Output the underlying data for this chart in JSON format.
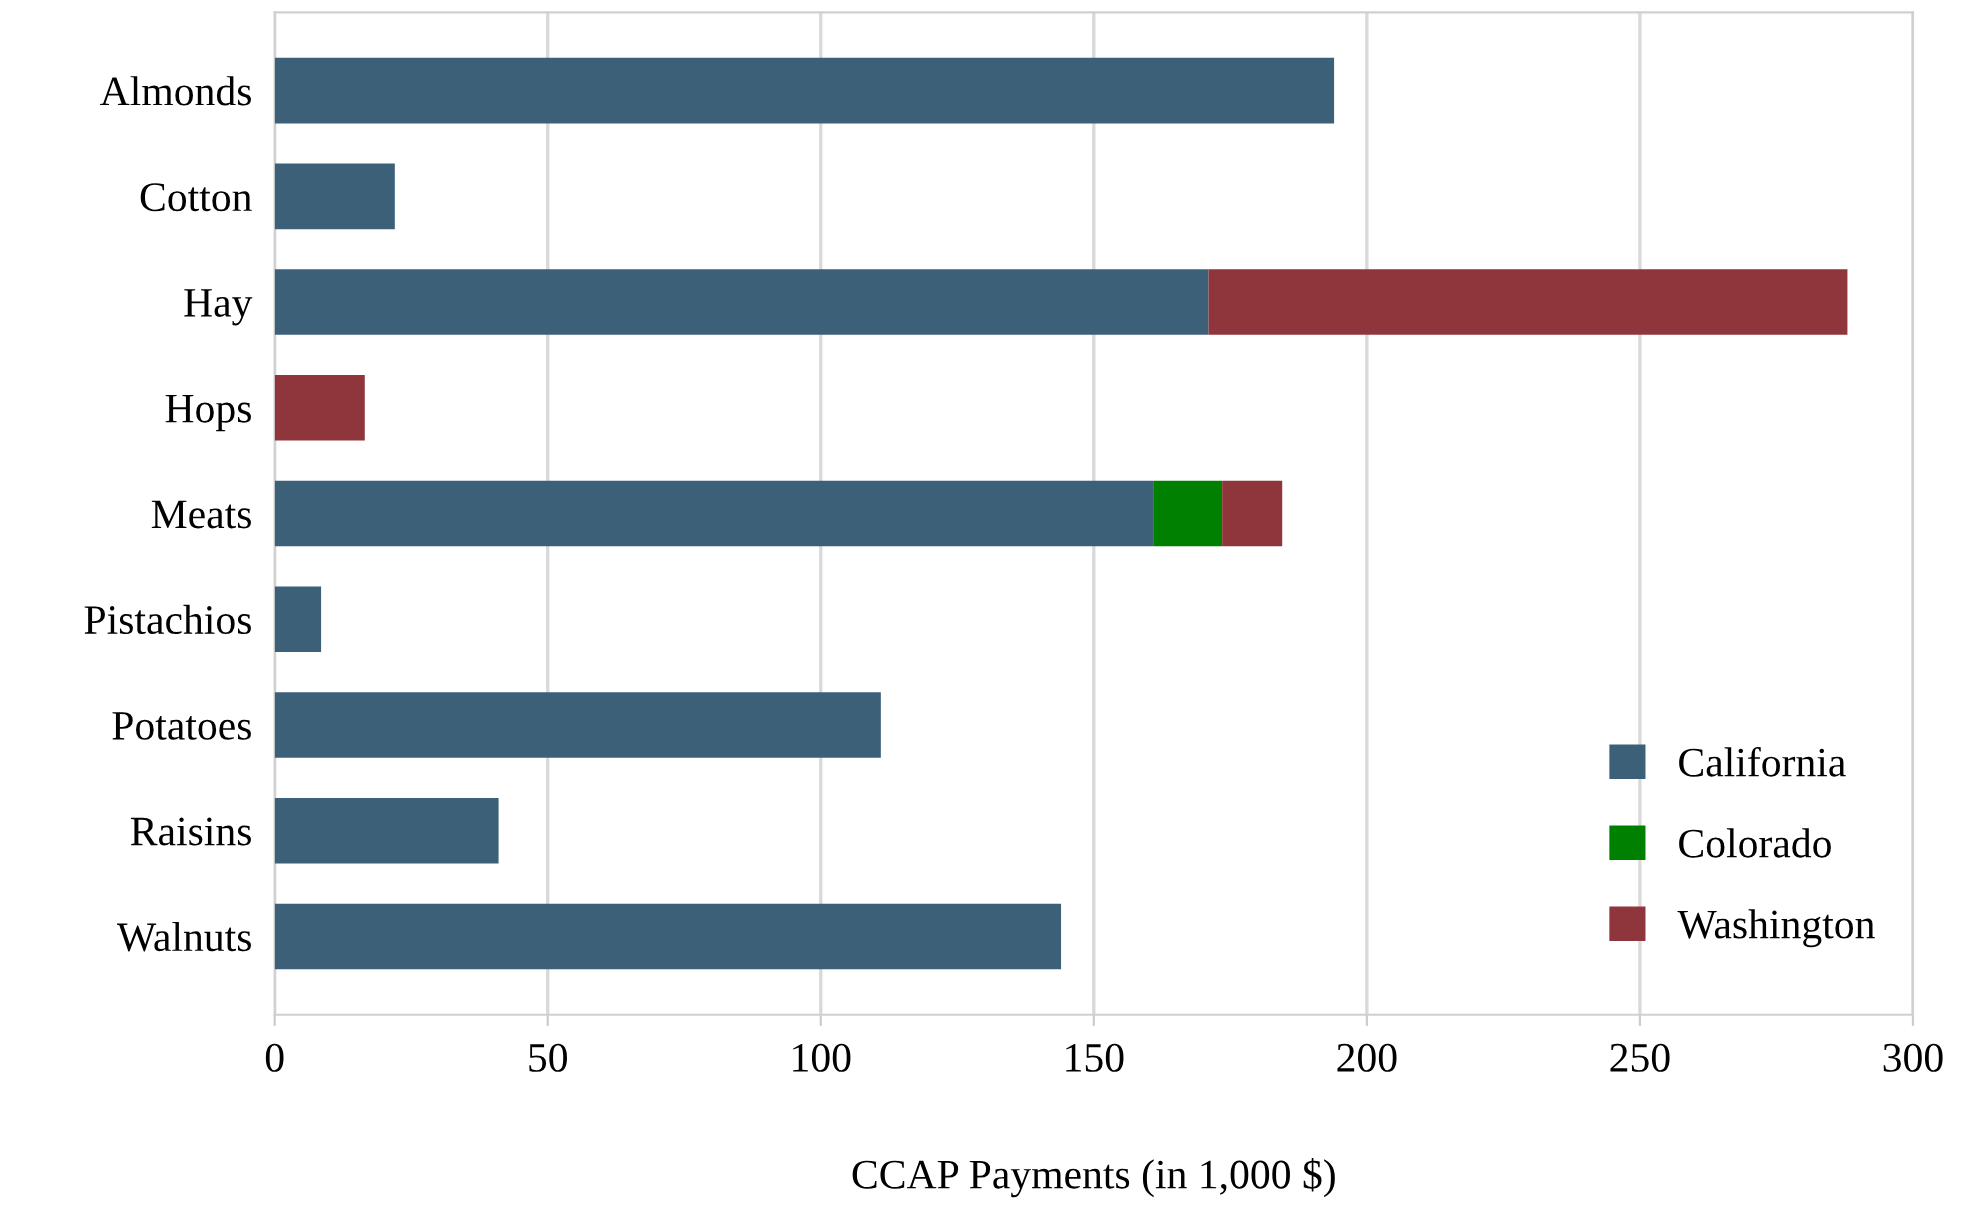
{
  "chart_data": {
    "type": "bar",
    "orientation": "horizontal",
    "stacked": true,
    "xlabel": "CCAP Payments (in 1,000 $)",
    "categories": [
      "Almonds",
      "Cotton",
      "Hay",
      "Hops",
      "Meats",
      "Pistachios",
      "Potatoes",
      "Raisins",
      "Walnuts"
    ],
    "series": [
      {
        "name": "California",
        "color": "#3d6079",
        "values": [
          194,
          22,
          171,
          0,
          161,
          8.5,
          111,
          41,
          144
        ]
      },
      {
        "name": "Colorado",
        "color": "#008000",
        "values": [
          0,
          0,
          0,
          0,
          12.5,
          0,
          0,
          0,
          0
        ]
      },
      {
        "name": "Washington",
        "color": "#8f353c",
        "values": [
          0,
          0,
          117,
          16.5,
          11,
          0,
          0,
          0,
          0
        ]
      }
    ],
    "xlim": [
      0,
      300
    ],
    "xticks": [
      0,
      50,
      100,
      150,
      200,
      250,
      300
    ],
    "grid": "x",
    "legend": "bottom right"
  }
}
